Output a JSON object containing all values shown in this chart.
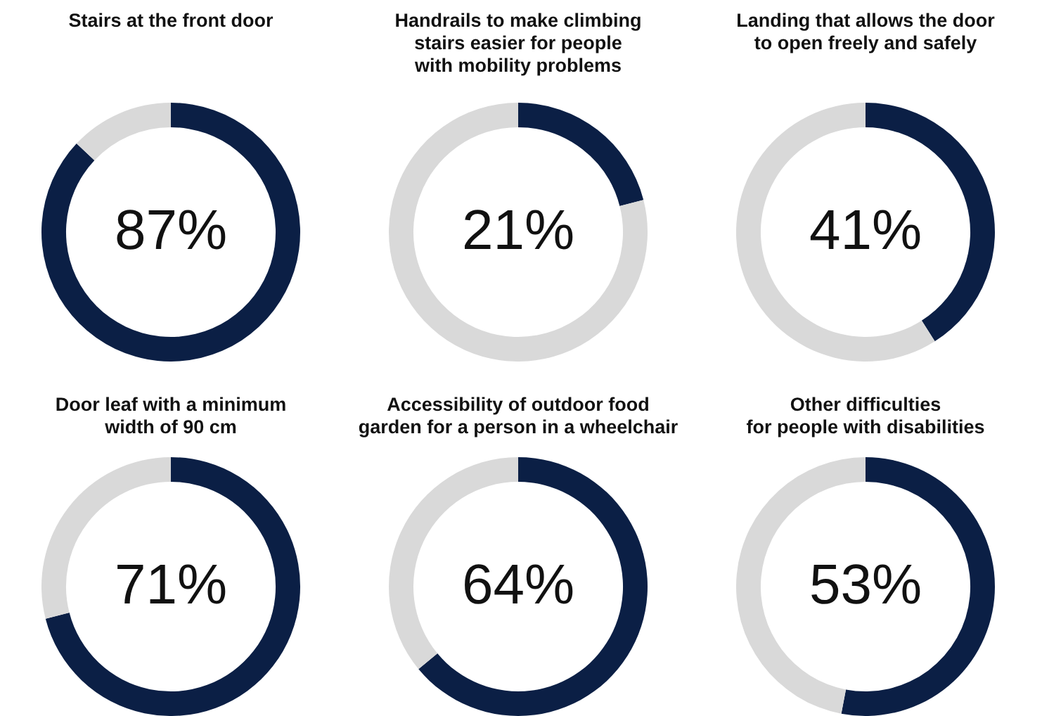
{
  "chart_data": [
    {
      "type": "donut",
      "title": "Stairs at the front door",
      "categories": [
        null,
        null
      ],
      "values": [
        87,
        13
      ],
      "colors": [
        "#0b1f45",
        "#d9d9d9"
      ],
      "value_labels": [
        "87%",
        null
      ]
    },
    {
      "type": "donut",
      "title": "Handrails to make climbing\nstairs easier for people\nwith mobility problems",
      "categories": [
        null,
        null
      ],
      "values": [
        21,
        79
      ],
      "colors": [
        "#0b1f45",
        "#d9d9d9"
      ],
      "value_labels": [
        "21%",
        null
      ]
    },
    {
      "type": "donut",
      "title": "Landing that allows the door\nto open freely and safely",
      "categories": [
        null,
        null
      ],
      "values": [
        41,
        59
      ],
      "colors": [
        "#0b1f45",
        "#d9d9d9"
      ],
      "value_labels": [
        "41%",
        null
      ]
    },
    {
      "type": "donut",
      "title": "Door leaf with a minimum\nwidth of 90 cm",
      "categories": [
        null,
        null
      ],
      "values": [
        71,
        29
      ],
      "colors": [
        "#0b1f45",
        "#d9d9d9"
      ],
      "value_labels": [
        "71%",
        null
      ]
    },
    {
      "type": "donut",
      "title": "Accessibility of outdoor food\ngarden for a person in a wheelchair",
      "categories": [
        null,
        null
      ],
      "values": [
        64,
        36
      ],
      "colors": [
        "#0b1f45",
        "#d9d9d9"
      ],
      "value_labels": [
        "64%",
        null
      ]
    },
    {
      "type": "donut",
      "title": "Other difficulties\nfor people with disabilities",
      "categories": [
        null,
        null
      ],
      "values": [
        53,
        47
      ],
      "colors": [
        "#0b1f45",
        "#d9d9d9"
      ],
      "value_labels": [
        "53%",
        null
      ]
    }
  ]
}
